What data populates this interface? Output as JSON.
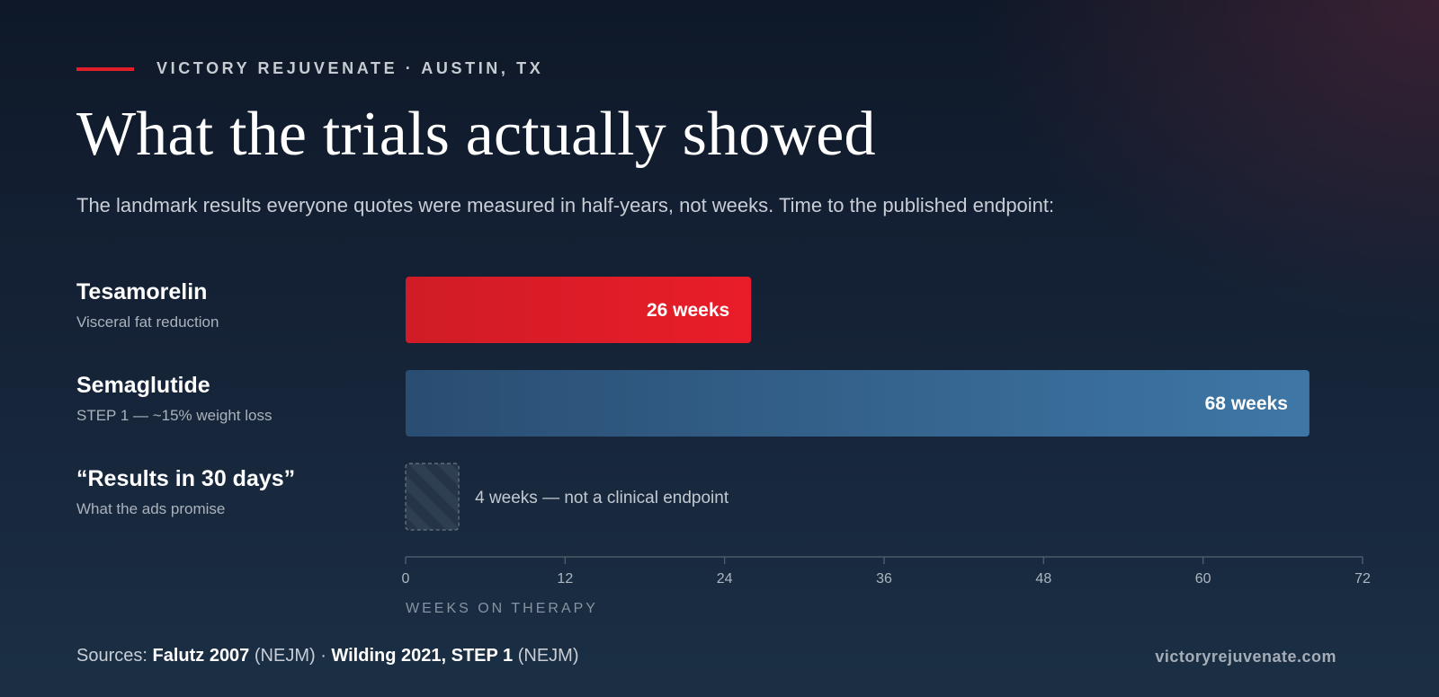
{
  "header": {
    "eyebrow": "VICTORY REJUVENATE · AUSTIN, TX",
    "title": "What the trials actually showed",
    "subtitle": "The landmark results everyone quotes were measured in half-years, not weeks. Time to the published endpoint:"
  },
  "rows": [
    {
      "name": "Tesamorelin",
      "desc": "Visceral fat reduction"
    },
    {
      "name": "Semaglutide",
      "desc": "STEP 1 — ~15% weight loss"
    },
    {
      "name": "“Results in 30 days”",
      "desc": "What the ads promise"
    }
  ],
  "chart_data": {
    "type": "bar",
    "orientation": "horizontal",
    "categories": [
      "Tesamorelin",
      "Semaglutide",
      "“Results in 30 days”"
    ],
    "values": [
      26,
      68,
      4
    ],
    "value_labels": [
      "26 weeks",
      "68 weeks",
      "4 weeks — not a clinical endpoint"
    ],
    "colors": [
      "#e01e29",
      "#3a6f9e",
      "#2b3a4b"
    ],
    "xlabel": "WEEKS ON THERAPY",
    "xlim": [
      0,
      72
    ],
    "xticks": [
      "0",
      "12",
      "24",
      "36",
      "48",
      "60",
      "72"
    ],
    "grid": false
  },
  "footer": {
    "sources_prefix": "Sources: ",
    "source1": "Falutz 2007",
    "source1_journal": " (NEJM) · ",
    "source2": "Wilding 2021, STEP 1",
    "source2_journal": " (NEJM)",
    "site": "victoryrejuvenate.com"
  }
}
